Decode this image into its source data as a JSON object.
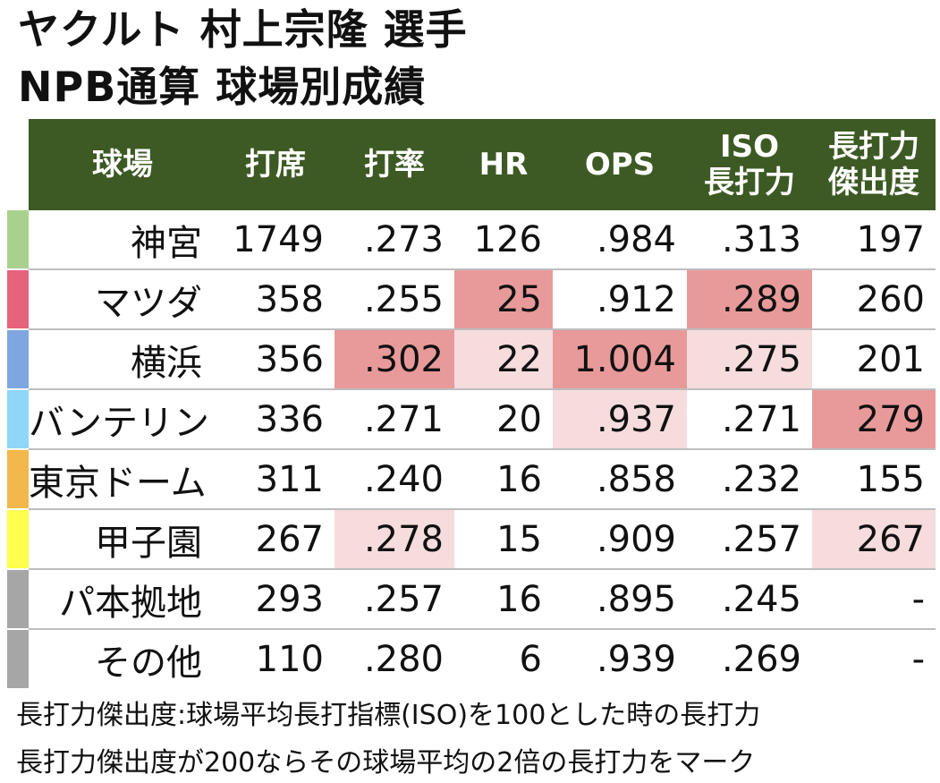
{
  "title_line1": "ヤクルト 村上宗隆 選手",
  "title_line2": "NPB通算 球場別成績",
  "footnote1": "長打力傑出度:球場平均長打指標(ISO)を100とした時の長打力",
  "footnote2": "長打力傑出度が200ならその球場平均の2倍の長打力をマーク",
  "colors": {
    "header_bg": "#3d5a24",
    "highlight_strong": "#e89a9a",
    "highlight_light": "#f6dcdc"
  },
  "chart_data": {
    "type": "table",
    "columns": [
      {
        "key": "venue",
        "lines": [
          "球場"
        ]
      },
      {
        "key": "pa",
        "lines": [
          "打席"
        ]
      },
      {
        "key": "avg",
        "lines": [
          "打率"
        ]
      },
      {
        "key": "hr",
        "lines": [
          "HR"
        ]
      },
      {
        "key": "ops",
        "lines": [
          "OPS"
        ]
      },
      {
        "key": "iso",
        "lines": [
          "ISO",
          "長打力"
        ]
      },
      {
        "key": "power",
        "lines": [
          "長打力",
          "傑出度"
        ]
      }
    ],
    "rows": [
      {
        "color": "#a9d18e",
        "cells": [
          "神宮",
          "1749",
          ".273",
          "126",
          ".984",
          ".313",
          "197"
        ],
        "hl": [
          0,
          0,
          0,
          0,
          0,
          0,
          0
        ]
      },
      {
        "color": "#e5637b",
        "cells": [
          "マツダ",
          "358",
          ".255",
          "25",
          ".912",
          ".289",
          "260"
        ],
        "hl": [
          0,
          0,
          0,
          2,
          0,
          2,
          0
        ]
      },
      {
        "color": "#7ea6e0",
        "cells": [
          "横浜",
          "356",
          ".302",
          "22",
          "1.004",
          ".275",
          "201"
        ],
        "hl": [
          0,
          0,
          2,
          1,
          2,
          1,
          0
        ]
      },
      {
        "color": "#8fd6f7",
        "cells": [
          "バンテリン",
          "336",
          ".271",
          "20",
          ".937",
          ".271",
          "279"
        ],
        "hl": [
          0,
          0,
          0,
          0,
          1,
          0,
          2
        ]
      },
      {
        "color": "#f2b84b",
        "cells": [
          "東京ドーム",
          "311",
          ".240",
          "16",
          ".858",
          ".232",
          "155"
        ],
        "hl": [
          0,
          0,
          0,
          0,
          0,
          0,
          0
        ]
      },
      {
        "color": "#ffff4d",
        "cells": [
          "甲子園",
          "267",
          ".278",
          "15",
          ".909",
          ".257",
          "267"
        ],
        "hl": [
          0,
          0,
          1,
          0,
          0,
          0,
          1
        ]
      },
      {
        "color": "#a6a6a6",
        "cells": [
          "パ本拠地",
          "293",
          ".257",
          "16",
          ".895",
          ".245",
          "-"
        ],
        "hl": [
          0,
          0,
          0,
          0,
          0,
          0,
          0
        ]
      },
      {
        "color": "#a6a6a6",
        "cells": [
          "その他",
          "110",
          ".280",
          "6",
          ".939",
          ".269",
          "-"
        ],
        "hl": [
          0,
          0,
          0,
          0,
          0,
          0,
          0
        ]
      }
    ]
  }
}
